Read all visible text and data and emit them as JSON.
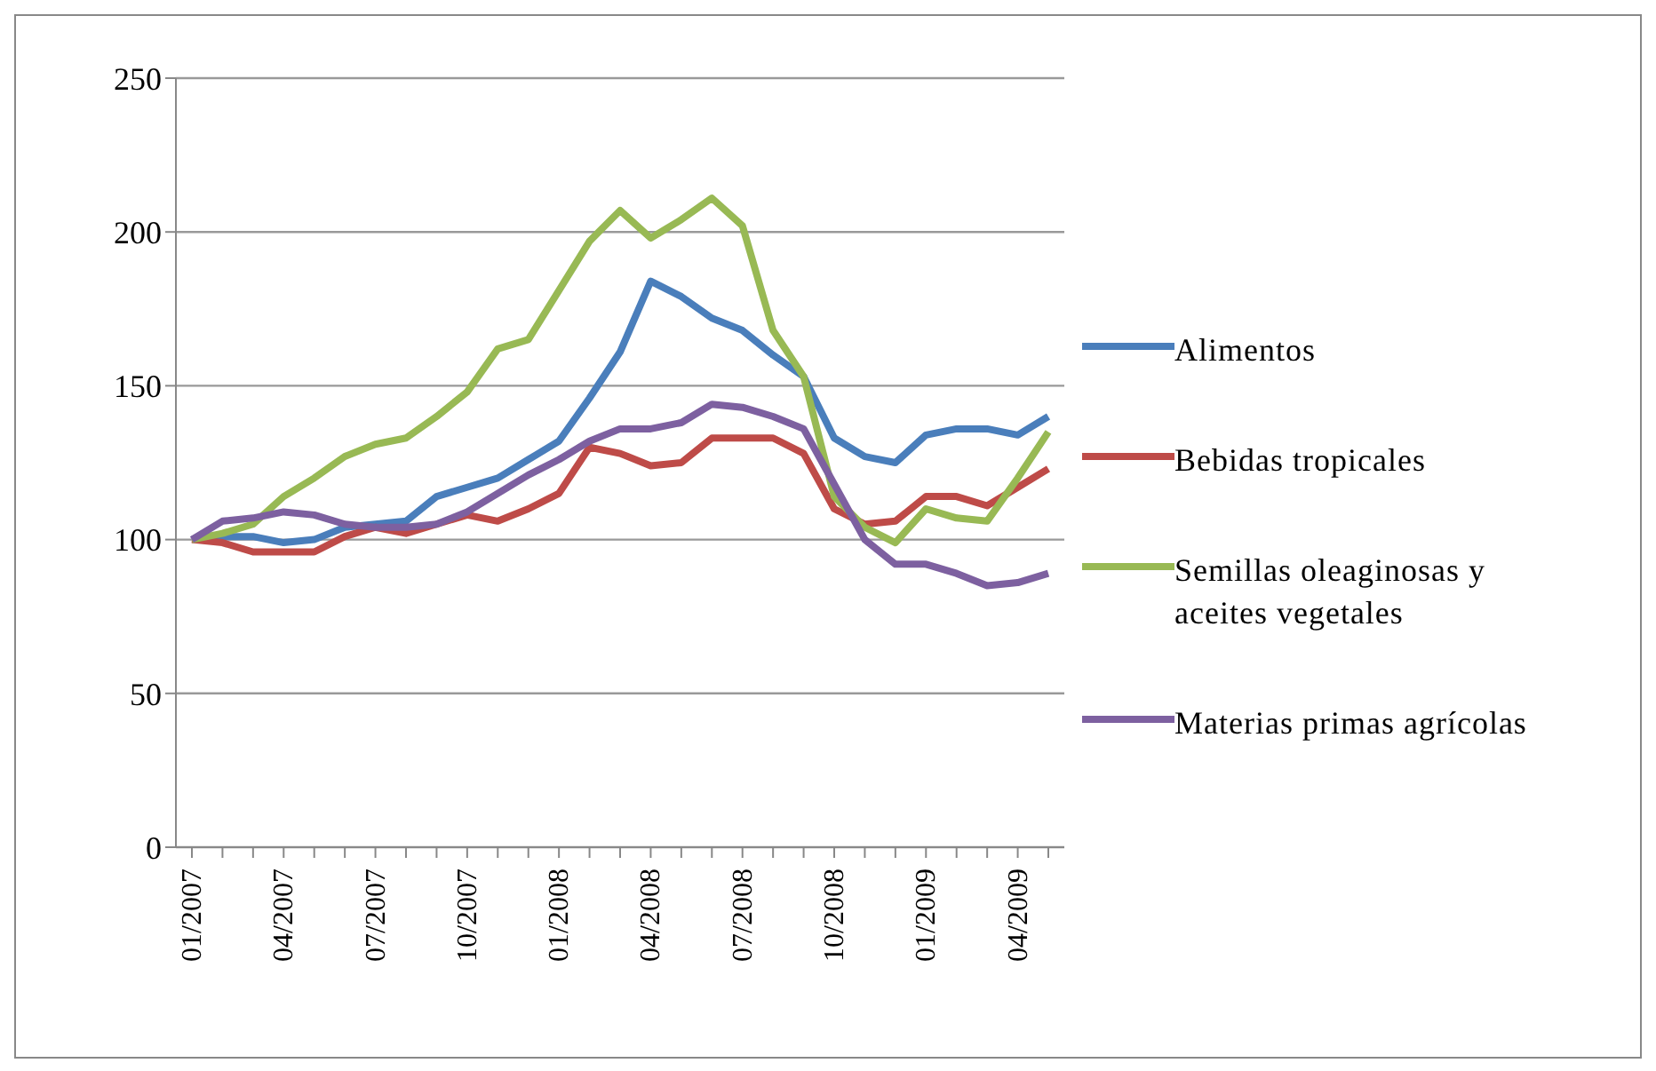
{
  "chart_data": {
    "type": "line",
    "categories": [
      "01/2007",
      null,
      null,
      "04/2007",
      null,
      null,
      "07/2007",
      null,
      null,
      "10/2007",
      null,
      null,
      "01/2008",
      null,
      null,
      "04/2008",
      null,
      null,
      "07/2008",
      null,
      null,
      "10/2008",
      null,
      null,
      "01/2009",
      null,
      null,
      "04/2009",
      null
    ],
    "series": [
      {
        "name": "Alimentos",
        "color": "#4a7ebb",
        "values": [
          100,
          101,
          101,
          99,
          100,
          104,
          105,
          106,
          114,
          117,
          120,
          126,
          132,
          146,
          161,
          184,
          179,
          172,
          168,
          160,
          153,
          133,
          127,
          125,
          134,
          136,
          136,
          134,
          140
        ]
      },
      {
        "name": "Bebidas tropicales",
        "color": "#be4b48",
        "values": [
          100,
          99,
          96,
          96,
          96,
          101,
          104,
          102,
          105,
          108,
          106,
          110,
          115,
          130,
          128,
          124,
          125,
          133,
          133,
          133,
          128,
          110,
          105,
          106,
          114,
          114,
          111,
          117,
          123
        ]
      },
      {
        "name": "Semillas oleaginosas y aceites vegetales",
        "color": "#98b954",
        "values": [
          100,
          102,
          105,
          114,
          120,
          127,
          131,
          133,
          140,
          148,
          162,
          165,
          181,
          197,
          207,
          198,
          204,
          211,
          202,
          168,
          153,
          114,
          104,
          99,
          110,
          107,
          106,
          120,
          135
        ]
      },
      {
        "name": "Materias primas agrícolas",
        "color": "#7d60a0",
        "values": [
          100,
          106,
          107,
          109,
          108,
          105,
          104,
          104,
          105,
          109,
          115,
          121,
          126,
          132,
          136,
          136,
          138,
          144,
          143,
          140,
          136,
          118,
          100,
          92,
          92,
          89,
          85,
          86,
          89
        ]
      }
    ],
    "ylim": [
      0,
      250
    ],
    "yticks": [
      0,
      50,
      100,
      150,
      200,
      250
    ],
    "grid": "y",
    "legend": "right",
    "marker": "none",
    "line_style": "solid"
  }
}
